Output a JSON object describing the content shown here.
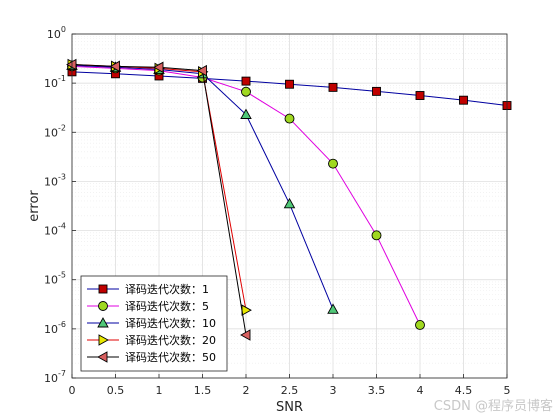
{
  "chart_data": {
    "type": "line",
    "title": "",
    "xlabel": "SNR",
    "ylabel": "error",
    "xlim": [
      0,
      5
    ],
    "ylim": [
      1e-07,
      1
    ],
    "yscale": "log",
    "grid": true,
    "minor_grid": true,
    "legend_position": "bottom-left",
    "x_ticks": [
      "0",
      "0.5",
      "1",
      "1.5",
      "2",
      "2.5",
      "3",
      "3.5",
      "4",
      "4.5",
      "5"
    ],
    "y_ticks": [
      {
        "base": "10",
        "exp": "0"
      },
      {
        "base": "10",
        "exp": "-1"
      },
      {
        "base": "10",
        "exp": "-2"
      },
      {
        "base": "10",
        "exp": "-3"
      },
      {
        "base": "10",
        "exp": "-4"
      },
      {
        "base": "10",
        "exp": "-5"
      },
      {
        "base": "10",
        "exp": "-6"
      },
      {
        "base": "10",
        "exp": "-7"
      }
    ],
    "series": [
      {
        "name": "译码迭代次数：1",
        "color": "#0000a0",
        "marker": "square",
        "marker_fill": "#c00000",
        "x": [
          0,
          0.5,
          1,
          1.5,
          2,
          2.5,
          3,
          3.5,
          4,
          4.5,
          5
        ],
        "y": [
          0.17,
          0.155,
          0.14,
          0.125,
          0.11,
          0.095,
          0.082,
          0.068,
          0.056,
          0.045,
          0.035
        ]
      },
      {
        "name": "译码迭代次数：5",
        "color": "#e000e0",
        "marker": "circle",
        "marker_fill": "#a0d820",
        "x": [
          0,
          0.5,
          1,
          1.5,
          2,
          2.5,
          3,
          3.5,
          4
        ],
        "y": [
          0.22,
          0.2,
          0.18,
          0.13,
          0.067,
          0.019,
          0.0023,
          8e-05,
          1.2e-06
        ]
      },
      {
        "name": "译码迭代次数：10",
        "color": "#0000a0",
        "marker": "triangle-up",
        "marker_fill": "#50c878",
        "x": [
          0,
          0.5,
          1,
          1.5,
          2,
          2.5,
          3
        ],
        "y": [
          0.23,
          0.21,
          0.19,
          0.155,
          0.023,
          0.00035,
          2.5e-06
        ]
      },
      {
        "name": "译码迭代次数：20",
        "color": "#e00000",
        "marker": "triangle-right",
        "marker_fill": "#e8e800",
        "x": [
          0,
          0.5,
          1,
          1.5,
          2
        ],
        "y": [
          0.24,
          0.22,
          0.2,
          0.17,
          2.4e-06
        ]
      },
      {
        "name": "译码迭代次数：50",
        "color": "#000000",
        "marker": "triangle-left",
        "marker_fill": "#d86060",
        "x": [
          0,
          0.5,
          1,
          1.5,
          2
        ],
        "y": [
          0.24,
          0.22,
          0.21,
          0.18,
          7.5e-07
        ]
      }
    ]
  },
  "watermark": "CSDN @程序员博客"
}
